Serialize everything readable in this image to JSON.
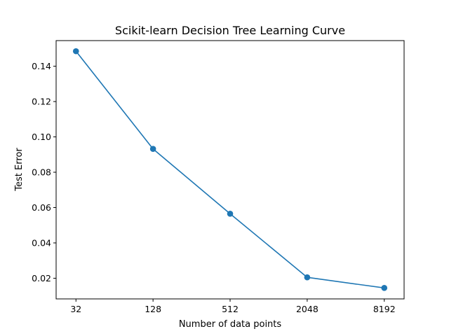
{
  "chart_data": {
    "type": "line",
    "title": "Scikit-learn Decision Tree Learning Curve",
    "xlabel": "Number of data points",
    "ylabel": "Test Error",
    "x_scale": "log2",
    "x": [
      32,
      128,
      512,
      2048,
      8192
    ],
    "x_tick_labels": [
      "32",
      "128",
      "512",
      "2048",
      "8192"
    ],
    "y_ticks": [
      0.02,
      0.04,
      0.06,
      0.08,
      0.1,
      0.12,
      0.14
    ],
    "y_tick_labels": [
      "0.02",
      "0.04",
      "0.06",
      "0.08",
      "0.10",
      "0.12",
      "0.14"
    ],
    "ylim": [
      0.0083,
      0.1545
    ],
    "xlim": [
      22.4,
      11700
    ],
    "grid": false,
    "legend": "none",
    "series": [
      {
        "values": [
          0.1485,
          0.0932,
          0.0565,
          0.0205,
          0.0145
        ],
        "color": "#1f77b4",
        "marker": "circle"
      }
    ]
  }
}
